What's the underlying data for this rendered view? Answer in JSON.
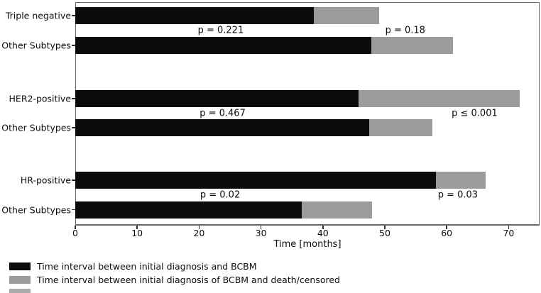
{
  "chart_data": {
    "type": "bar",
    "orientation": "horizontal",
    "stacked": true,
    "title": "",
    "xlabel": "Time [months]",
    "ylabel": "",
    "xlim": [
      0,
      75
    ],
    "x_ticks": [
      0,
      10,
      20,
      30,
      40,
      50,
      60,
      70
    ],
    "grid": false,
    "legend_position": "below-plot",
    "categories": [
      "Triple negative",
      "Other Subtypes",
      "HER2-positive",
      "Other Subtypes",
      "HR-positive",
      "Other Subtypes"
    ],
    "series": [
      {
        "name": "Time interval between initial diagnosis and BCBM",
        "color": "#0b0b0b",
        "values": [
          38.5,
          47.8,
          45.7,
          47.5,
          58.2,
          36.6
        ]
      },
      {
        "name": "Time interval between initial diagnosis of BCBM and death/censored",
        "color": "#9b9b9b",
        "values": [
          10.6,
          13.2,
          26.1,
          10.2,
          8.1,
          11.3
        ]
      }
    ],
    "stack_totals": [
      49.1,
      61.0,
      71.8,
      57.7,
      66.3,
      47.9
    ],
    "annotations": [
      {
        "text": "p = 0.221",
        "x_months": 23.5,
        "group": 0,
        "side": "left"
      },
      {
        "text": "p = 0.18",
        "x_months": 53.3,
        "group": 0,
        "side": "right"
      },
      {
        "text": "p = 0.467",
        "x_months": 23.8,
        "group": 1,
        "side": "left"
      },
      {
        "text": "p ≤ 0.001",
        "x_months": 64.5,
        "group": 1,
        "side": "right"
      },
      {
        "text": "p = 0.02",
        "x_months": 23.4,
        "group": 2,
        "side": "left"
      },
      {
        "text": "p = 0.03",
        "x_months": 61.8,
        "group": 2,
        "side": "right"
      }
    ]
  },
  "legend": {
    "items": [
      {
        "label": "Time interval between initial diagnosis and BCBM",
        "color": "#0b0b0b"
      },
      {
        "label": "Time interval between initial diagnosis of BCBM and death/censored",
        "color": "#9b9b9b"
      }
    ]
  },
  "colors": {
    "bar_black": "#0b0b0b",
    "bar_gray": "#9b9b9b",
    "spine": "#686868",
    "text": "#0d0d0d"
  }
}
